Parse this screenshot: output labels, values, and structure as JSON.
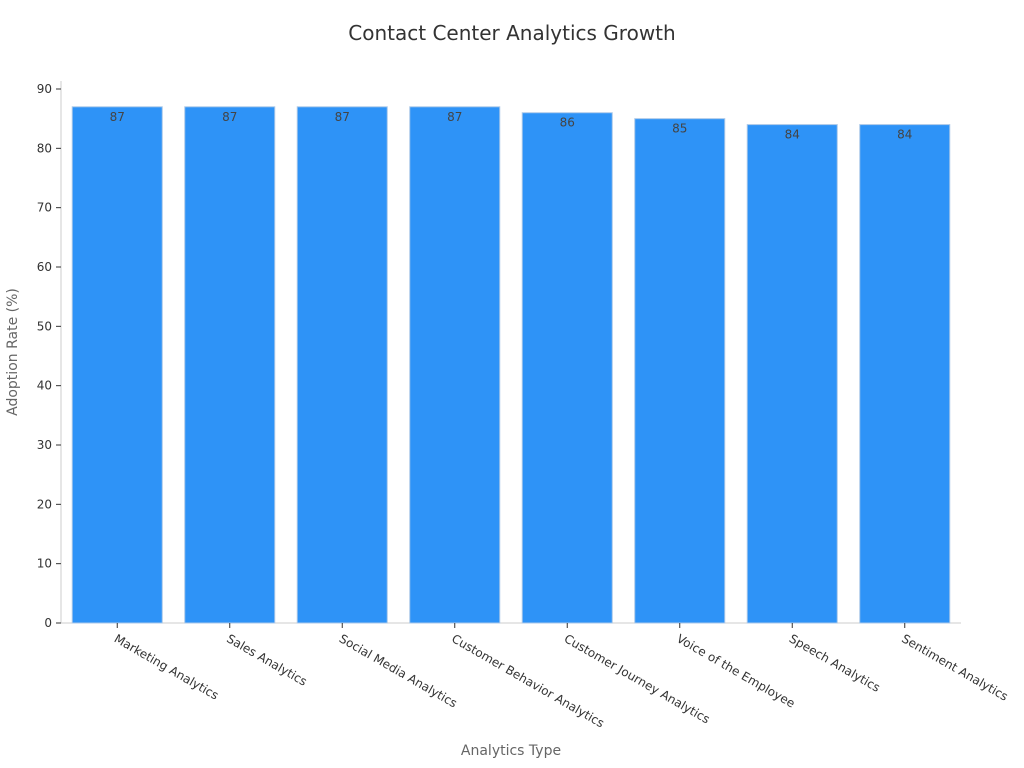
{
  "chart_data": {
    "type": "bar",
    "title": "Contact Center Analytics Growth",
    "xlabel": "Analytics Type",
    "ylabel": "Adoption Rate (%)",
    "categories": [
      "Marketing Analytics",
      "Sales Analytics",
      "Social Media Analytics",
      "Customer Behavior Analytics",
      "Customer Journey Analytics",
      "Voice of the Employee",
      "Speech Analytics",
      "Sentiment Analytics"
    ],
    "values": [
      87,
      87,
      87,
      87,
      86,
      85,
      84,
      84
    ],
    "ylim": [
      0,
      90
    ],
    "yticks": [
      0,
      10,
      20,
      30,
      40,
      50,
      60,
      70,
      80,
      90
    ],
    "bar_color": "#2e93f7",
    "grid": false,
    "data_labels": true
  }
}
